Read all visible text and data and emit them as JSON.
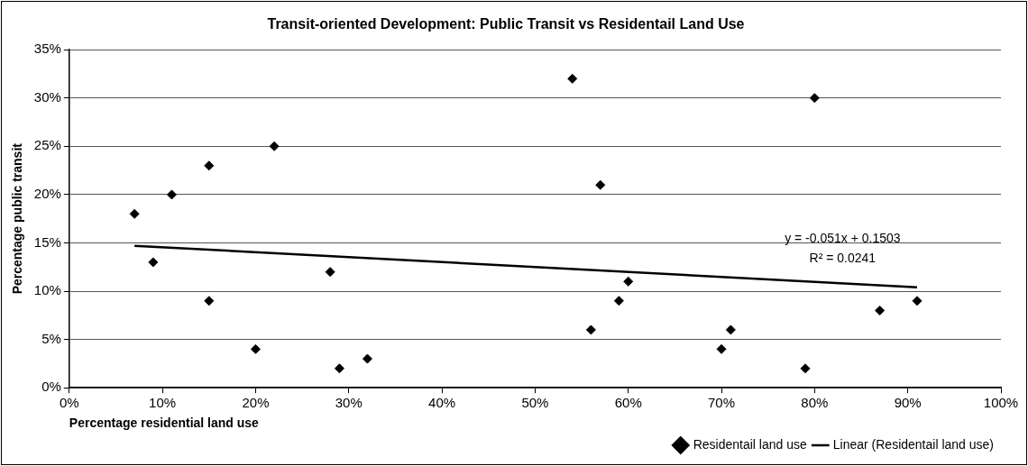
{
  "chart_data": {
    "type": "scatter",
    "title": "Transit-oriented Development: Public Transit vs Residentail Land Use",
    "xlabel": "Percentage residential land use",
    "ylabel": "Percentage public transit",
    "series": [
      {
        "name": "Residentail land use",
        "color": "#000000",
        "marker": "diamond",
        "x": [
          7,
          9,
          11,
          15,
          15,
          20,
          22,
          28,
          29,
          32,
          54,
          56,
          57,
          59,
          60,
          70,
          71,
          79,
          80,
          87,
          91
        ],
        "values": [
          18,
          13,
          20,
          23,
          9,
          4,
          25,
          12,
          2,
          3,
          32,
          6,
          21,
          9,
          11,
          4,
          6,
          2,
          30,
          8,
          9
        ]
      },
      {
        "name": "Linear (Residentail land use)",
        "type": "line",
        "color": "#000000",
        "marker": "none",
        "line_style": "solid",
        "x": [
          7,
          91
        ],
        "values": [
          14.7,
          10.4
        ]
      }
    ],
    "xlim": [
      0,
      100
    ],
    "ylim": [
      0,
      35
    ],
    "xticks": [
      {
        "value": 0,
        "label": "0%"
      },
      {
        "value": 10,
        "label": "10%"
      },
      {
        "value": 20,
        "label": "20%"
      },
      {
        "value": 30,
        "label": "30%"
      },
      {
        "value": 40,
        "label": "40%"
      },
      {
        "value": 50,
        "label": "50%"
      },
      {
        "value": 60,
        "label": "60%"
      },
      {
        "value": 70,
        "label": "70%"
      },
      {
        "value": 80,
        "label": "80%"
      },
      {
        "value": 90,
        "label": "90%"
      },
      {
        "value": 100,
        "label": "100%"
      }
    ],
    "yticks": [
      {
        "value": 0,
        "label": "0%"
      },
      {
        "value": 5,
        "label": "5%"
      },
      {
        "value": 10,
        "label": "10%"
      },
      {
        "value": 15,
        "label": "15%"
      },
      {
        "value": 20,
        "label": "20%"
      },
      {
        "value": 25,
        "label": "25%"
      },
      {
        "value": 30,
        "label": "30%"
      },
      {
        "value": 35,
        "label": "35%"
      }
    ],
    "grid": "y",
    "legend": "bottom right",
    "annotations": [
      "y = -0.051x + 0.1503",
      "R² = 0.0241"
    ]
  }
}
